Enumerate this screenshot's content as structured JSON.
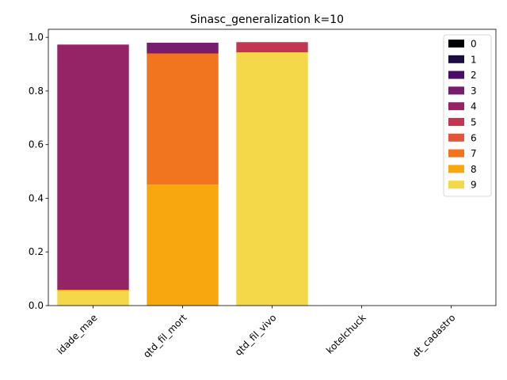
{
  "chart_data": {
    "type": "bar",
    "stacked": true,
    "title": "Sinasc_generalization k=10",
    "xlabel": "",
    "ylabel": "",
    "categories": [
      "idade_mae",
      "qtd_fil_mort",
      "qtd_fil_vivo",
      "kotelchuck",
      "dt_cadastro"
    ],
    "ylim": [
      0,
      1.03
    ],
    "yticks": [
      "0.0",
      "0.2",
      "0.4",
      "0.6",
      "0.8",
      "1.0"
    ],
    "yticks_values": [
      0,
      0.2,
      0.4,
      0.6,
      0.8,
      1.0
    ],
    "grid": false,
    "legend_position": "top-right",
    "stack_order": [
      "9",
      "8",
      "7",
      "6",
      "5",
      "4",
      "3",
      "2",
      "1",
      "0"
    ],
    "series": [
      {
        "name": "0",
        "color": "#000004",
        "values": [
          0,
          0,
          0,
          0,
          0
        ]
      },
      {
        "name": "1",
        "color": "#1b0c41",
        "values": [
          0,
          0,
          0,
          0,
          0
        ]
      },
      {
        "name": "2",
        "color": "#4a0c6b",
        "values": [
          0,
          0,
          0,
          0,
          0
        ]
      },
      {
        "name": "3",
        "color": "#781c6d",
        "values": [
          0,
          0.04,
          0,
          0,
          0
        ]
      },
      {
        "name": "4",
        "color": "#952465",
        "values": [
          0.914,
          0,
          0,
          0,
          0
        ]
      },
      {
        "name": "5",
        "color": "#c1374f",
        "values": [
          0,
          0,
          0.038,
          0,
          0
        ]
      },
      {
        "name": "6",
        "color": "#e3553e",
        "values": [
          0,
          0,
          0,
          0,
          0
        ]
      },
      {
        "name": "7",
        "color": "#f1751f",
        "values": [
          0,
          0.489,
          0,
          0,
          0
        ]
      },
      {
        "name": "8",
        "color": "#f9a70e",
        "values": [
          0.005,
          0.451,
          0,
          0,
          0
        ]
      },
      {
        "name": "9",
        "color": "#f4d848",
        "values": [
          0.054,
          0,
          0.944,
          0,
          0
        ]
      }
    ]
  }
}
